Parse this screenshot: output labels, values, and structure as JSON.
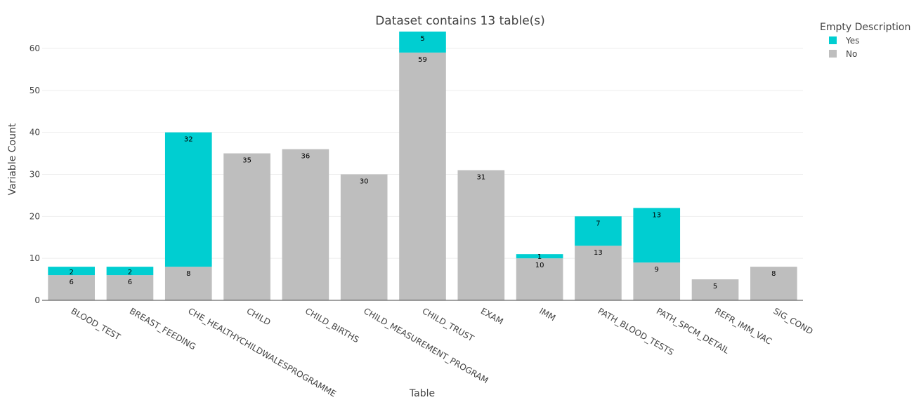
{
  "chart_data": {
    "type": "bar",
    "stacked": true,
    "title": "Dataset contains 13 table(s)",
    "xlabel": "Table",
    "ylabel": "Variable Count",
    "ylim": [
      0,
      64
    ],
    "yticks": [
      0,
      10,
      20,
      30,
      40,
      50,
      60
    ],
    "grid": true,
    "legend_title": "Empty Description",
    "legend_placement": "top-right",
    "categories": [
      "BLOOD_TEST",
      "BREAST_FEEDING",
      "CHE_HEALTHYCHILDWALESPROGRAMME",
      "CHILD",
      "CHILD_BIRTHS",
      "CHILD_MEASUREMENT_PROGRAM",
      "CHILD_TRUST",
      "EXAM",
      "IMM",
      "PATH_BLOOD_TESTS",
      "PATH_SPCM_DETAIL",
      "REFR_IMM_VAC",
      "SIG_COND"
    ],
    "series": [
      {
        "name": "No",
        "color": "#bebebe",
        "values": [
          6,
          6,
          8,
          35,
          36,
          30,
          59,
          31,
          10,
          13,
          9,
          5,
          8
        ]
      },
      {
        "name": "Yes",
        "color": "#00ced1",
        "values": [
          2,
          2,
          32,
          0,
          0,
          0,
          5,
          0,
          1,
          7,
          13,
          0,
          0
        ]
      }
    ],
    "legend_order": [
      "Yes",
      "No"
    ]
  }
}
